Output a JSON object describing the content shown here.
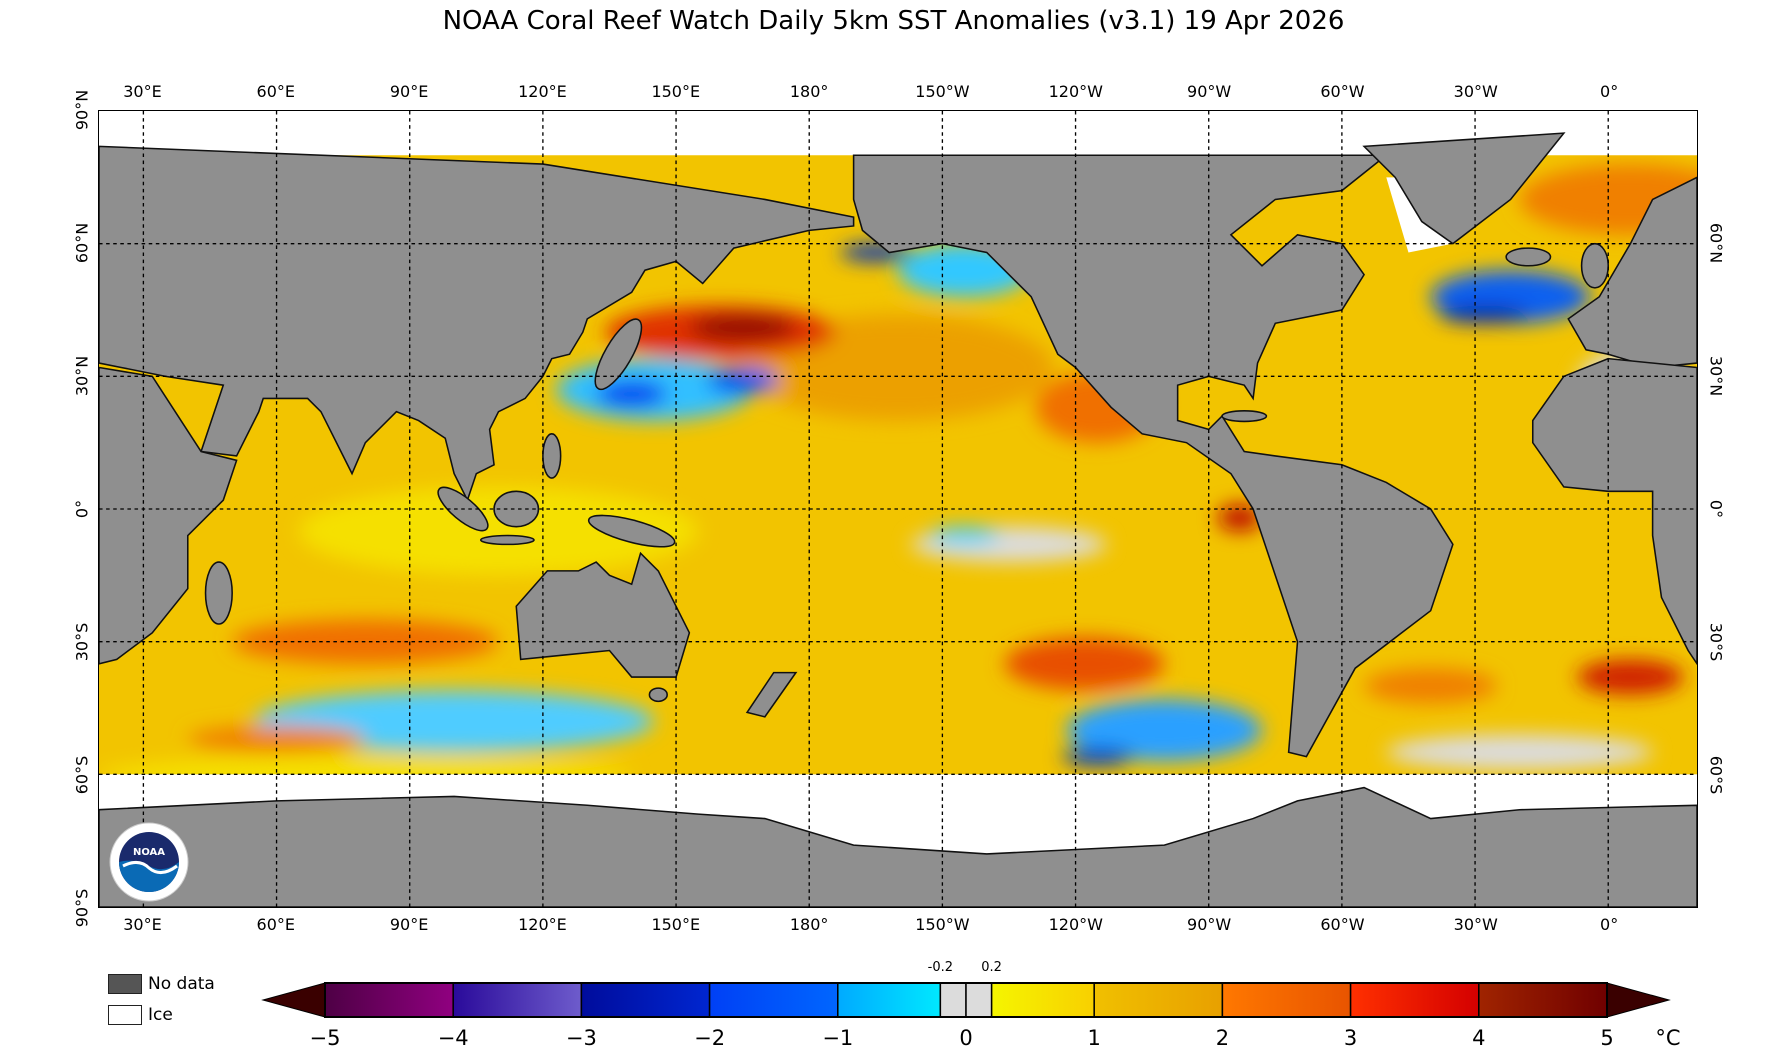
{
  "title": "NOAA Coral Reef Watch Daily 5km SST Anomalies  (v3.1)   19 Apr 2026",
  "map": {
    "projection": "equirectangular",
    "lon_range": [
      20,
      380
    ],
    "lat_range": [
      -90,
      90
    ],
    "lon_labels": [
      {
        "text": "30°E",
        "lon": 30
      },
      {
        "text": "60°E",
        "lon": 60
      },
      {
        "text": "90°E",
        "lon": 90
      },
      {
        "text": "120°E",
        "lon": 120
      },
      {
        "text": "150°E",
        "lon": 150
      },
      {
        "text": "180°",
        "lon": 180
      },
      {
        "text": "150°W",
        "lon": 210
      },
      {
        "text": "120°W",
        "lon": 240
      },
      {
        "text": "90°W",
        "lon": 270
      },
      {
        "text": "60°W",
        "lon": 300
      },
      {
        "text": "30°W",
        "lon": 330
      },
      {
        "text": "0°",
        "lon": 360
      }
    ],
    "lat_labels_left": [
      {
        "text": "90°N",
        "lat": 90
      },
      {
        "text": "60°N",
        "lat": 60
      },
      {
        "text": "30°N",
        "lat": 30
      },
      {
        "text": "0°",
        "lat": 0
      },
      {
        "text": "30°S",
        "lat": -30
      },
      {
        "text": "60°S",
        "lat": -60
      },
      {
        "text": "90°S",
        "lat": -90
      }
    ],
    "lat_labels_right": [
      {
        "text": "60°N",
        "lat": 60
      },
      {
        "text": "30°N",
        "lat": 30
      },
      {
        "text": "0°",
        "lat": 0
      },
      {
        "text": "30°S",
        "lat": -30
      },
      {
        "text": "60°S",
        "lat": -60
      }
    ],
    "grid": "dotted, every 30°",
    "colors": {
      "land": "#8f8f8f",
      "ocean_base": "#f2c400",
      "ice": "#ffffff",
      "no_data": "#555555"
    }
  },
  "logo": {
    "text": "NOAA"
  },
  "legend": {
    "no_data": {
      "label": "No data",
      "color": "#555555"
    },
    "ice": {
      "label": "Ice",
      "color": "#ffffff"
    }
  },
  "colorbar": {
    "unit": "°C",
    "range": [
      -5,
      5
    ],
    "ticks": [
      "−5",
      "−4",
      "−3",
      "−2",
      "−1",
      "0",
      "1",
      "2",
      "3",
      "4",
      "5"
    ],
    "minor_ticks": [
      "-0.2",
      "0.2"
    ],
    "segments": [
      {
        "from": -5,
        "to": -4,
        "colors": [
          "#4e0045",
          "#900080"
        ]
      },
      {
        "from": -4,
        "to": -3,
        "colors": [
          "#2a0a9a",
          "#6e5ccc"
        ]
      },
      {
        "from": -3,
        "to": -2,
        "colors": [
          "#000c9c",
          "#0026d0"
        ]
      },
      {
        "from": -2,
        "to": -1,
        "colors": [
          "#0040f5",
          "#0066ff"
        ]
      },
      {
        "from": -1,
        "to": -0.2,
        "colors": [
          "#00aaff",
          "#00e8ff"
        ]
      },
      {
        "from": -0.2,
        "to": 0,
        "colors": [
          "#dcdcdc",
          "#dcdcdc"
        ]
      },
      {
        "from": 0,
        "to": 0.2,
        "colors": [
          "#dcdcdc",
          "#dcdcdc"
        ]
      },
      {
        "from": 0.2,
        "to": 1,
        "colors": [
          "#f5f500",
          "#f8d000"
        ]
      },
      {
        "from": 1,
        "to": 2,
        "colors": [
          "#f0c000",
          "#e8a000"
        ]
      },
      {
        "from": 2,
        "to": 3,
        "colors": [
          "#ff7800",
          "#e85400"
        ]
      },
      {
        "from": 3,
        "to": 4,
        "colors": [
          "#ff3000",
          "#d40000"
        ]
      },
      {
        "from": 4,
        "to": 5,
        "colors": [
          "#a02400",
          "#700000"
        ]
      }
    ],
    "extend_color": "#3a0000"
  }
}
